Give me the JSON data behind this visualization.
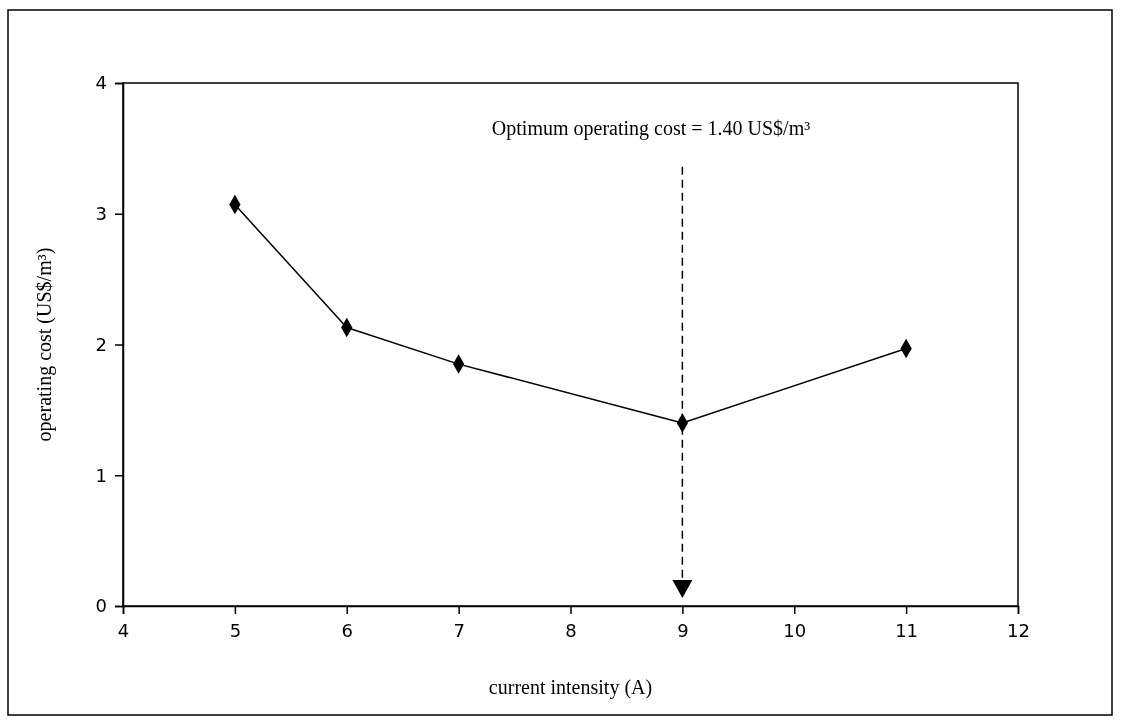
{
  "chart_data": {
    "type": "line",
    "xlabel": "current intensity (A)",
    "ylabel": "operating cost (US$/m³)",
    "x": [
      5,
      6,
      7,
      9,
      11
    ],
    "series": [
      {
        "color": "#000000",
        "values": [
          3.07,
          2.13,
          1.85,
          1.4,
          1.97
        ]
      }
    ],
    "xlim": [
      4,
      12
    ],
    "xticks": [
      4,
      5,
      6,
      7,
      8,
      9,
      10,
      11,
      12
    ],
    "ylim": [
      0,
      4
    ],
    "yticks": [
      0,
      1,
      2,
      3,
      4
    ],
    "marker": "diamond",
    "line_style": "solid",
    "ref_lines": [
      {
        "axis": "x",
        "value": 9,
        "color": "#000000",
        "line_style": "dashed"
      }
    ],
    "annotations": [
      "Optimum operating cost = 1.40 US$/m³"
    ]
  }
}
